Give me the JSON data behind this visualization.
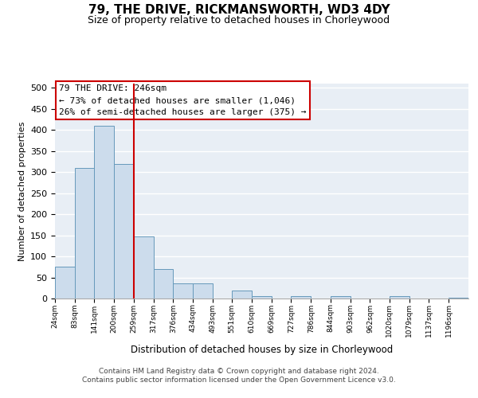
{
  "title1": "79, THE DRIVE, RICKMANSWORTH, WD3 4DY",
  "title2": "Size of property relative to detached houses in Chorleywood",
  "xlabel": "Distribution of detached houses by size in Chorleywood",
  "ylabel": "Number of detached properties",
  "bin_labels": [
    "24sqm",
    "83sqm",
    "141sqm",
    "200sqm",
    "259sqm",
    "317sqm",
    "376sqm",
    "434sqm",
    "493sqm",
    "551sqm",
    "610sqm",
    "669sqm",
    "727sqm",
    "786sqm",
    "844sqm",
    "903sqm",
    "962sqm",
    "1020sqm",
    "1079sqm",
    "1137sqm",
    "1196sqm"
  ],
  "bar_values": [
    75,
    310,
    410,
    320,
    148,
    70,
    36,
    36,
    0,
    18,
    5,
    0,
    5,
    0,
    5,
    0,
    0,
    5,
    0,
    0,
    2
  ],
  "bar_color": "#ccdcec",
  "bar_edge_color": "#6699bb",
  "vline_x": 259,
  "vline_color": "#cc0000",
  "annotation_line0": "79 THE DRIVE: 246sqm",
  "annotation_line1": "← 73% of detached houses are smaller (1,046)",
  "annotation_line2": "26% of semi-detached houses are larger (375) →",
  "annotation_box_edge_color": "#cc0000",
  "plot_bg_color": "#e8eef5",
  "footer1": "Contains HM Land Registry data © Crown copyright and database right 2024.",
  "footer2": "Contains public sector information licensed under the Open Government Licence v3.0.",
  "ylim": [
    0,
    510
  ],
  "yticks": [
    0,
    50,
    100,
    150,
    200,
    250,
    300,
    350,
    400,
    450,
    500
  ],
  "bin_edges": [
    24,
    83,
    141,
    200,
    259,
    317,
    376,
    434,
    493,
    551,
    610,
    669,
    727,
    786,
    844,
    903,
    962,
    1020,
    1079,
    1137,
    1196,
    1255
  ]
}
